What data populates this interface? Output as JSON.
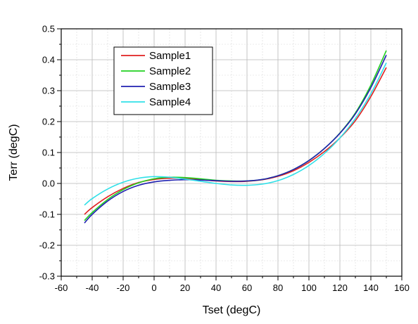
{
  "chart_data": {
    "type": "line",
    "title": "",
    "xlabel": "Tset (degC)",
    "ylabel": "Terr (degC)",
    "xlim": [
      -60,
      160
    ],
    "ylim": [
      -0.3,
      0.5
    ],
    "xticks": [
      -60,
      -40,
      -20,
      0,
      20,
      40,
      60,
      80,
      100,
      120,
      140,
      160
    ],
    "yticks": [
      -0.3,
      -0.2,
      -0.1,
      0.0,
      0.1,
      0.2,
      0.3,
      0.4,
      0.5
    ],
    "xtick_labels": [
      "-60",
      "-40",
      "-20",
      "0",
      "20",
      "40",
      "60",
      "80",
      "100",
      "120",
      "140",
      "160"
    ],
    "ytick_labels": [
      "-0.3",
      "-0.2",
      "-0.1",
      "0.0",
      "0.1",
      "0.2",
      "0.3",
      "0.4",
      "0.5"
    ],
    "grid": true,
    "legend_position": "top-left",
    "x": [
      -45,
      -40,
      -30,
      -20,
      -10,
      0,
      10,
      20,
      30,
      40,
      50,
      60,
      70,
      80,
      90,
      100,
      110,
      120,
      130,
      140,
      150
    ],
    "series": [
      {
        "name": "Sample1",
        "color": "#e02020",
        "values": [
          -0.1,
          -0.078,
          -0.043,
          -0.016,
          0.003,
          0.013,
          0.017,
          0.016,
          0.012,
          0.008,
          0.006,
          0.007,
          0.012,
          0.023,
          0.041,
          0.068,
          0.103,
          0.147,
          0.203,
          0.281,
          0.375
        ]
      },
      {
        "name": "Sample2",
        "color": "#20d020",
        "values": [
          -0.12,
          -0.094,
          -0.052,
          -0.02,
          0.002,
          0.015,
          0.02,
          0.019,
          0.015,
          0.01,
          0.008,
          0.008,
          0.013,
          0.025,
          0.045,
          0.074,
          0.113,
          0.163,
          0.228,
          0.318,
          0.43
        ]
      },
      {
        "name": "Sample3",
        "color": "#2020b0",
        "values": [
          -0.128,
          -0.1,
          -0.057,
          -0.026,
          -0.006,
          0.005,
          0.01,
          0.012,
          0.011,
          0.009,
          0.007,
          0.008,
          0.013,
          0.025,
          0.045,
          0.074,
          0.113,
          0.162,
          0.225,
          0.31,
          0.415
        ]
      },
      {
        "name": "Sample4",
        "color": "#30e0e8",
        "values": [
          -0.07,
          -0.049,
          -0.018,
          0.004,
          0.017,
          0.022,
          0.02,
          0.014,
          0.007,
          0.0,
          -0.005,
          -0.006,
          -0.002,
          0.009,
          0.029,
          0.058,
          0.097,
          0.147,
          0.21,
          0.29,
          0.39
        ]
      }
    ]
  }
}
